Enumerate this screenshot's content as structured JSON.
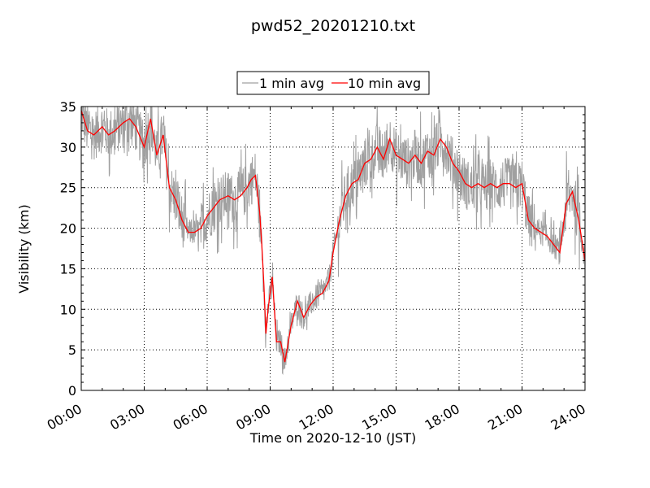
{
  "chart_data": {
    "type": "line",
    "title": "pwd52_20201210.txt",
    "xlabel": "Time on 2020-12-10 (JST)",
    "ylabel": "Visibility (km)",
    "xlim_hours": [
      0,
      24
    ],
    "ylim": [
      0,
      35
    ],
    "x_ticks": [
      "00:00",
      "03:00",
      "06:00",
      "09:00",
      "12:00",
      "15:00",
      "18:00",
      "21:00",
      "24:00"
    ],
    "y_ticks": [
      "0",
      "5",
      "10",
      "15",
      "20",
      "25",
      "30",
      "35"
    ],
    "grid": true,
    "legend_position": "top-center",
    "series": [
      {
        "name": "1 min avg",
        "color": "#a0a0a0",
        "x": [
          0,
          0.5,
          1,
          1.5,
          2,
          2.5,
          3,
          3.5,
          4,
          4.5,
          5,
          5.5,
          6,
          6.5,
          7,
          7.5,
          8,
          8.3,
          8.5,
          8.7,
          9,
          9.3,
          9.5,
          10,
          10.5,
          11,
          11.5,
          12,
          12.5,
          13,
          13.5,
          14,
          14.5,
          15,
          15.5,
          16,
          16.5,
          17,
          17.5,
          18,
          18.5,
          19,
          19.5,
          20,
          20.5,
          21,
          21.5,
          22,
          22.5,
          23,
          23.5,
          24
        ],
        "y": [
          34,
          30,
          32,
          31,
          33,
          31,
          33,
          29,
          25,
          21,
          20,
          20,
          22,
          23,
          24,
          24,
          26,
          22,
          16,
          8,
          6,
          5,
          4,
          9,
          9,
          11,
          12,
          18,
          23,
          26,
          28,
          30,
          29,
          29,
          30,
          29,
          28,
          31,
          28,
          26,
          25,
          25,
          25,
          25,
          24,
          20,
          19,
          18,
          17,
          23,
          20,
          15
        ]
      },
      {
        "name": "10 min avg",
        "color": "#ff0000",
        "x": [
          0,
          0.3,
          0.6,
          1,
          1.3,
          1.6,
          2,
          2.3,
          2.6,
          3,
          3.3,
          3.6,
          3.9,
          4.2,
          4.5,
          4.8,
          5.1,
          5.4,
          5.7,
          6,
          6.3,
          6.6,
          7,
          7.3,
          7.6,
          7.9,
          8.1,
          8.3,
          8.5,
          8.6,
          8.7,
          8.8,
          8.9,
          9.1,
          9.3,
          9.5,
          9.7,
          10,
          10.3,
          10.6,
          10.9,
          11.2,
          11.5,
          11.8,
          12,
          12.3,
          12.6,
          12.9,
          13.2,
          13.5,
          13.8,
          14.1,
          14.4,
          14.7,
          15,
          15.3,
          15.6,
          15.9,
          16.2,
          16.5,
          16.8,
          17.1,
          17.4,
          17.7,
          18,
          18.3,
          18.6,
          18.9,
          19.2,
          19.5,
          19.8,
          20.1,
          20.4,
          20.7,
          21,
          21.3,
          21.6,
          21.9,
          22.2,
          22.5,
          22.8,
          23.1,
          23.4,
          23.7,
          24
        ],
        "y": [
          34.5,
          32,
          31.5,
          32.5,
          31.5,
          32,
          33,
          33.5,
          32.5,
          30,
          33.5,
          29,
          31.5,
          25,
          23.5,
          21,
          19.5,
          19.5,
          20,
          21.5,
          22.5,
          23.5,
          24,
          23.5,
          24,
          25,
          26,
          26.5,
          22,
          18,
          13,
          7,
          10,
          14,
          6,
          6,
          3.5,
          8,
          11,
          9,
          10.5,
          11.5,
          12,
          13.5,
          17,
          21,
          24,
          25.5,
          26,
          28,
          28.5,
          30,
          28.5,
          31,
          29,
          28.5,
          28,
          29,
          28,
          29.5,
          29,
          31,
          30,
          28,
          27,
          25.5,
          25,
          25.5,
          25,
          25.5,
          25,
          25.5,
          25.5,
          25,
          25.5,
          21,
          20,
          19.5,
          19,
          18,
          17,
          23,
          24.5,
          21,
          16
        ]
      }
    ]
  }
}
